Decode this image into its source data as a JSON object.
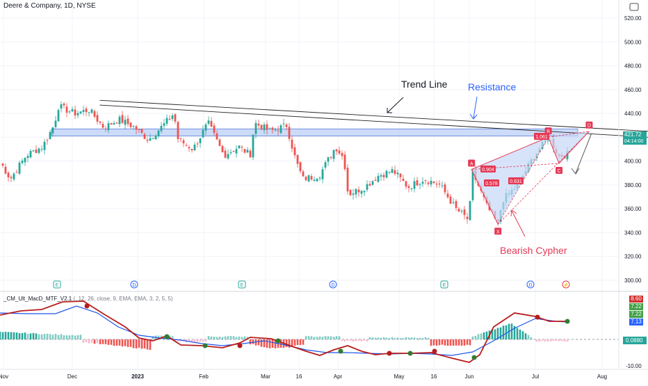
{
  "header": {
    "title": "Deere & Company, 1D, NYSE"
  },
  "macd": {
    "name": "_CM_Ult_MacD_MTF_V2.1",
    "params": "(, 12, 26, close, 9, EMA, EMA, 3, 2, 5, 5)",
    "tags": [
      "8.60",
      "7.22",
      "7.22",
      "7.13"
    ],
    "tag_colors": [
      "#d32f2f",
      "#43a047",
      "#43a047",
      "#2962ff"
    ],
    "axis_labels": [
      "0.0880",
      "-10.00"
    ]
  },
  "price_axis": {
    "labels": [
      "520.00",
      "500.00",
      "480.00",
      "460.00",
      "440.00",
      "420.00",
      "400.00",
      "380.00",
      "360.00",
      "340.00",
      "320.00",
      "300.00"
    ],
    "last_price": "421.72",
    "countdown": "04:14:00"
  },
  "time_axis": {
    "labels": [
      "Nov",
      "Dec",
      "2023",
      "Feb",
      "Mar",
      "16",
      "Apr",
      "May",
      "16",
      "Jun",
      "Jul",
      "Aug"
    ]
  },
  "annotations": {
    "trend_line": "Trend Line",
    "resistance": "Resistance",
    "pattern": "Bearish Cypher",
    "points": [
      "X",
      "A",
      "B",
      "C",
      "D"
    ],
    "ratios": [
      "0.904",
      "0.578",
      "1.061",
      "0.631"
    ]
  },
  "events": [
    "E",
    "D",
    "E",
    "D",
    "E",
    "D",
    "⚡"
  ],
  "colors": {
    "up": "#26a69a",
    "down": "#ef5350",
    "resistance_fill": "#bbcff5",
    "pattern": "#e53955",
    "macd_line": "#2e7d32",
    "signal_line": "#1e54e8",
    "red_line": "#b71c1c",
    "blue_text": "#2962ff"
  },
  "chart_data": {
    "type": "candlestick",
    "symbol": "Deere & Company, 1D, NYSE",
    "ylim": [
      300,
      525
    ],
    "y_ticks": [
      520,
      500,
      480,
      460,
      440,
      420,
      400,
      380,
      360,
      340,
      320,
      300
    ],
    "last_price": 421.72,
    "anchors": [
      {
        "date": "Oct 28",
        "close": 398
      },
      {
        "date": "Nov 4",
        "close": 385
      },
      {
        "date": "Nov 11",
        "close": 405
      },
      {
        "date": "Nov 18",
        "close": 412
      },
      {
        "date": "Nov 23",
        "close": 430
      },
      {
        "date": "Nov 25",
        "close": 446
      },
      {
        "date": "Dec 2",
        "close": 440
      },
      {
        "date": "Dec 9",
        "close": 443
      },
      {
        "date": "Dec 16",
        "close": 428
      },
      {
        "date": "Dec 23",
        "close": 435
      },
      {
        "date": "Dec 30",
        "close": 429
      },
      {
        "date": "Jan 6",
        "close": 418
      },
      {
        "date": "Jan 13",
        "close": 430
      },
      {
        "date": "Jan 18",
        "close": 440
      },
      {
        "date": "Jan 20",
        "close": 418
      },
      {
        "date": "Jan 27",
        "close": 410
      },
      {
        "date": "Feb 3",
        "close": 432
      },
      {
        "date": "Feb 10",
        "close": 405
      },
      {
        "date": "Feb 17",
        "close": 412
      },
      {
        "date": "Feb 22",
        "close": 405
      },
      {
        "date": "Feb 24",
        "close": 432
      },
      {
        "date": "Mar 3",
        "close": 425
      },
      {
        "date": "Mar 10",
        "close": 430
      },
      {
        "date": "Mar 14",
        "close": 400
      },
      {
        "date": "Mar 17",
        "close": 385
      },
      {
        "date": "Mar 24",
        "close": 388
      },
      {
        "date": "Mar 31",
        "close": 412
      },
      {
        "date": "Apr 4",
        "close": 402
      },
      {
        "date": "Apr 6",
        "close": 372
      },
      {
        "date": "Apr 14",
        "close": 378
      },
      {
        "date": "Apr 21",
        "close": 388
      },
      {
        "date": "Apr 28",
        "close": 392
      },
      {
        "date": "May 5",
        "close": 378
      },
      {
        "date": "May 12",
        "close": 385
      },
      {
        "date": "May 19",
        "close": 380
      },
      {
        "date": "May 26",
        "close": 360
      },
      {
        "date": "Jun 1",
        "close": 350
      },
      {
        "date": "Jun 2",
        "close": 393
      },
      {
        "date": "Jun 9",
        "close": 362
      },
      {
        "date": "Jun 14",
        "close": 347
      },
      {
        "date": "Jun 16",
        "close": 367
      },
      {
        "date": "Jun 23",
        "close": 380
      },
      {
        "date": "Jun 30",
        "close": 403
      },
      {
        "date": "Jul 7",
        "close": 420
      },
      {
        "date": "Jul 12",
        "close": 404
      },
      {
        "date": "Jul 17",
        "close": 406
      },
      {
        "date": "Jul 21",
        "close": 412
      },
      {
        "date": "Jul 26",
        "close": 421.72
      }
    ],
    "resistance_zone": [
      421,
      427
    ],
    "trend_lines": [
      {
        "from": {
          "date": "Dec 14",
          "price": 451
        },
        "to": {
          "date": "Aug 1",
          "price": 425
        }
      },
      {
        "from": {
          "date": "Dec 14",
          "price": 447
        },
        "to": {
          "date": "Aug 1",
          "price": 420
        }
      }
    ],
    "cypher": [
      {
        "point": "X",
        "date": "Jun 14",
        "price": 347
      },
      {
        "point": "A",
        "date": "Jun 2",
        "price": 393
      },
      {
        "point": "B",
        "date": "Jul 7",
        "price": 420
      },
      {
        "point": "C",
        "date": "Jul 12",
        "price": 398
      },
      {
        "point": "D",
        "date": "Jul 26",
        "price": 425
      }
    ],
    "cypher_ratios": [
      0.904,
      0.578,
      1.061,
      0.631
    ]
  }
}
